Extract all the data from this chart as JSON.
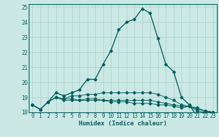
{
  "title": "",
  "xlabel": "Humidex (Indice chaleur)",
  "ylabel": "",
  "background_color": "#cce8e4",
  "grid_color": "#aad4cc",
  "line_color": "#006060",
  "xlim": [
    -0.5,
    23.5
  ],
  "ylim": [
    18,
    25.2
  ],
  "xticks": [
    0,
    1,
    2,
    3,
    4,
    5,
    6,
    7,
    8,
    9,
    10,
    11,
    12,
    13,
    14,
    15,
    16,
    17,
    18,
    19,
    20,
    21,
    22,
    23
  ],
  "yticks": [
    18,
    19,
    20,
    21,
    22,
    23,
    24,
    25
  ],
  "series": [
    [
      18.5,
      18.2,
      18.7,
      19.3,
      19.1,
      19.3,
      19.5,
      20.2,
      20.2,
      21.2,
      22.1,
      23.5,
      24.0,
      24.2,
      24.9,
      24.6,
      22.9,
      21.2,
      20.7,
      19.0,
      18.5,
      17.7,
      18.1,
      18.0
    ],
    [
      18.5,
      18.2,
      18.7,
      19.0,
      18.9,
      19.1,
      19.1,
      19.2,
      19.2,
      19.3,
      19.3,
      19.3,
      19.3,
      19.3,
      19.3,
      19.3,
      19.2,
      19.0,
      18.8,
      18.5,
      18.4,
      18.3,
      18.1,
      18.0
    ],
    [
      18.5,
      18.2,
      18.7,
      19.0,
      18.9,
      18.9,
      18.8,
      18.9,
      18.9,
      18.8,
      18.8,
      18.8,
      18.8,
      18.8,
      18.8,
      18.8,
      18.7,
      18.6,
      18.5,
      18.4,
      18.4,
      18.2,
      18.1,
      18.0
    ],
    [
      18.5,
      18.2,
      18.7,
      19.0,
      18.8,
      18.8,
      18.8,
      18.8,
      18.8,
      18.8,
      18.7,
      18.7,
      18.7,
      18.6,
      18.6,
      18.6,
      18.5,
      18.5,
      18.4,
      18.3,
      18.4,
      18.1,
      18.0,
      18.0
    ]
  ]
}
